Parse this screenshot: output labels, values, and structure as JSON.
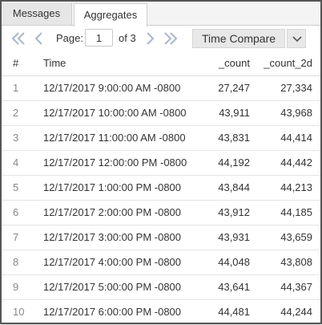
{
  "tabs": [
    {
      "label": "Messages",
      "active": false
    },
    {
      "label": "Aggregates",
      "active": true
    }
  ],
  "pagination": {
    "page_label": "Page:",
    "page_value": "1",
    "of_text": "of 3"
  },
  "compare": {
    "label": "Time Compare"
  },
  "icons": {
    "first": "double-chevron-left-icon",
    "prev": "chevron-left-icon",
    "next": "chevron-right-icon",
    "last": "double-chevron-right-icon",
    "dropdown": "chevron-down-icon"
  },
  "colors": {
    "pager_icon": "#a9b7cc",
    "button_bg": "#e8e8e8",
    "tab_bg": "#e6e6e6"
  },
  "table": {
    "headers": [
      "#",
      "Time",
      "_count",
      "_count_2d"
    ],
    "rows": [
      [
        "1",
        "12/17/2017 9:00:00 AM -0800",
        "27,247",
        "27,334"
      ],
      [
        "2",
        "12/17/2017 10:00:00 AM -0800",
        "43,911",
        "43,968"
      ],
      [
        "3",
        "12/17/2017 11:00:00 AM -0800",
        "43,831",
        "44,414"
      ],
      [
        "4",
        "12/17/2017 12:00:00 PM -0800",
        "44,192",
        "44,442"
      ],
      [
        "5",
        "12/17/2017 1:00:00 PM -0800",
        "43,844",
        "44,213"
      ],
      [
        "6",
        "12/17/2017 2:00:00 PM -0800",
        "43,912",
        "44,185"
      ],
      [
        "7",
        "12/17/2017 3:00:00 PM -0800",
        "43,931",
        "43,659"
      ],
      [
        "8",
        "12/17/2017 4:00:00 PM -0800",
        "44,048",
        "43,808"
      ],
      [
        "9",
        "12/17/2017 5:00:00 PM -0800",
        "43,641",
        "44,367"
      ],
      [
        "10",
        "12/17/2017 6:00:00 PM -0800",
        "44,481",
        "44,244"
      ]
    ]
  }
}
